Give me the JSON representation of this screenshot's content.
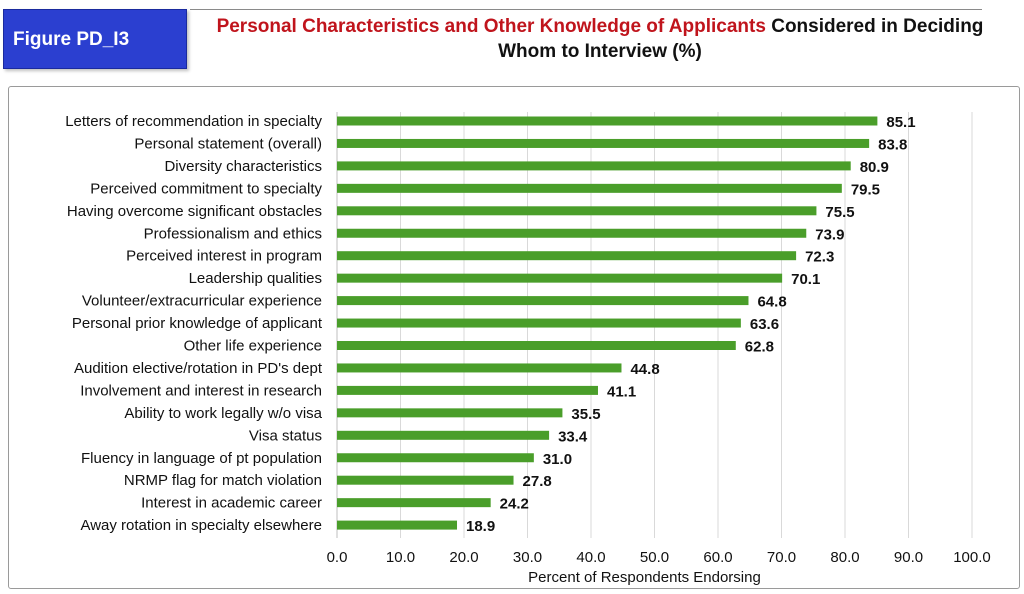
{
  "figure_label": "Figure PD_I3",
  "title": {
    "highlight": "Personal Characteristics and Other Knowledge of Applicants",
    "rest": " Considered in Deciding Whom to Interview (%)"
  },
  "colors": {
    "bar": "#4a9e2a",
    "grid": "#d9d9d9",
    "title_highlight": "#c0141c",
    "label_box": "#2b3fd0"
  },
  "chart_data": {
    "type": "bar",
    "orientation": "horizontal",
    "categories": [
      "Letters of recommendation in specialty",
      "Personal statement (overall)",
      "Diversity characteristics",
      "Perceived commitment to specialty",
      "Having overcome significant obstacles",
      "Professionalism and ethics",
      "Perceived interest in program",
      "Leadership qualities",
      "Volunteer/extracurricular experience",
      "Personal prior knowledge of applicant",
      "Other life experience",
      "Audition elective/rotation in PD's dept",
      "Involvement and interest in research",
      "Ability to work legally w/o visa",
      "Visa status",
      "Fluency in language of pt population",
      "NRMP flag for match violation",
      "Interest in academic career",
      "Away rotation in specialty elsewhere"
    ],
    "values": [
      85.1,
      83.8,
      80.9,
      79.5,
      75.5,
      73.9,
      72.3,
      70.1,
      64.8,
      63.6,
      62.8,
      44.8,
      41.1,
      35.5,
      33.4,
      31.0,
      27.8,
      24.2,
      18.9
    ],
    "value_labels": [
      "85.1",
      "83.8",
      "80.9",
      "79.5",
      "75.5",
      "73.9",
      "72.3",
      "70.1",
      "64.8",
      "63.6",
      "62.8",
      "44.8",
      "41.1",
      "35.5",
      "33.4",
      "31.0",
      "27.8",
      "24.2",
      "18.9"
    ],
    "xlabel": "Percent of Respondents Endorsing",
    "ylabel": "",
    "xlim": [
      0,
      100
    ],
    "xticks": [
      "0.0",
      "10.0",
      "20.0",
      "30.0",
      "40.0",
      "50.0",
      "60.0",
      "70.0",
      "80.0",
      "90.0",
      "100.0"
    ],
    "grid": "vertical",
    "legend": "none"
  }
}
